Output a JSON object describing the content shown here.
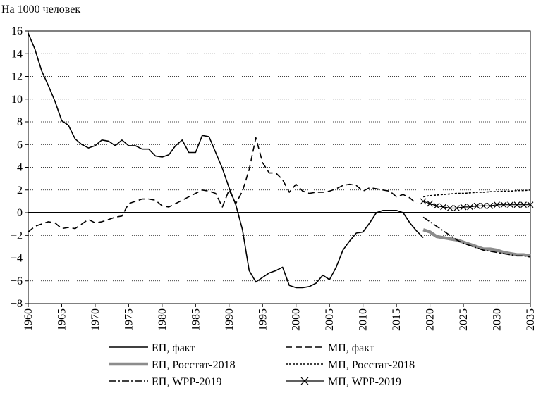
{
  "chart_data": {
    "type": "line",
    "y_label": "На 1000 человек",
    "xlim": [
      1960,
      2035
    ],
    "xticks": [
      1960,
      1965,
      1970,
      1975,
      1980,
      1985,
      1990,
      1995,
      2000,
      2005,
      2010,
      2015,
      2020,
      2025,
      2030,
      2035
    ],
    "ylim": [
      -8,
      16
    ],
    "yticks": [
      {
        "value": -8,
        "label": "−8"
      },
      {
        "value": -6,
        "label": "−6"
      },
      {
        "value": -4,
        "label": "−4"
      },
      {
        "value": -2,
        "label": "−2"
      },
      0,
      2,
      4,
      6,
      8,
      10,
      12,
      14,
      16
    ],
    "grid": true,
    "series": [
      {
        "name": "ЕП, факт",
        "color": "#000000",
        "dash": "none",
        "width": 1.6,
        "x": [
          1960,
          1961,
          1962,
          1963,
          1964,
          1965,
          1966,
          1967,
          1968,
          1969,
          1970,
          1971,
          1972,
          1973,
          1974,
          1975,
          1976,
          1977,
          1978,
          1979,
          1980,
          1981,
          1982,
          1983,
          1984,
          1985,
          1986,
          1987,
          1988,
          1989,
          1990,
          1991,
          1992,
          1993,
          1994,
          1995,
          1996,
          1997,
          1998,
          1999,
          2000,
          2001,
          2002,
          2003,
          2004,
          2005,
          2006,
          2007,
          2008,
          2009,
          2010,
          2011,
          2012,
          2013,
          2014,
          2015,
          2016,
          2017,
          2018,
          2019
        ],
        "values": [
          15.8,
          14.4,
          12.5,
          11.2,
          9.8,
          8.1,
          7.7,
          6.5,
          6.0,
          5.7,
          5.9,
          6.4,
          6.3,
          5.9,
          6.4,
          5.9,
          5.9,
          5.6,
          5.6,
          5.0,
          4.9,
          5.1,
          5.9,
          6.4,
          5.3,
          5.3,
          6.8,
          6.7,
          5.3,
          3.9,
          2.2,
          0.7,
          -1.5,
          -5.1,
          -6.1,
          -5.7,
          -5.3,
          -5.1,
          -4.8,
          -6.4,
          -6.6,
          -6.6,
          -6.5,
          -6.2,
          -5.5,
          -5.9,
          -4.8,
          -3.3,
          -2.5,
          -1.8,
          -1.7,
          -0.9,
          0.0,
          0.2,
          0.2,
          0.2,
          0.0,
          -0.9,
          -1.6,
          -2.2
        ]
      },
      {
        "name": "МП, факт",
        "color": "#000000",
        "dash": "9 5",
        "width": 1.6,
        "x": [
          1960,
          1961,
          1962,
          1963,
          1964,
          1965,
          1966,
          1967,
          1968,
          1969,
          1970,
          1971,
          1972,
          1973,
          1974,
          1975,
          1976,
          1977,
          1978,
          1979,
          1980,
          1981,
          1982,
          1983,
          1984,
          1985,
          1986,
          1987,
          1988,
          1989,
          1990,
          1991,
          1992,
          1993,
          1994,
          1995,
          1996,
          1997,
          1998,
          1999,
          2000,
          2001,
          2002,
          2003,
          2004,
          2005,
          2006,
          2007,
          2008,
          2009,
          2010,
          2011,
          2012,
          2013,
          2014,
          2015,
          2016,
          2017,
          2018
        ],
        "values": [
          -1.7,
          -1.2,
          -1.0,
          -0.8,
          -0.9,
          -1.4,
          -1.3,
          -1.4,
          -1.0,
          -0.6,
          -0.9,
          -0.8,
          -0.6,
          -0.4,
          -0.3,
          0.8,
          1.0,
          1.2,
          1.2,
          1.1,
          0.6,
          0.5,
          0.8,
          1.1,
          1.4,
          1.7,
          2.0,
          1.9,
          1.7,
          0.5,
          2.0,
          0.8,
          1.9,
          3.8,
          6.6,
          4.4,
          3.5,
          3.5,
          2.9,
          1.8,
          2.5,
          1.9,
          1.7,
          1.8,
          1.8,
          1.9,
          2.1,
          2.4,
          2.5,
          2.4,
          1.9,
          2.2,
          2.1,
          2.0,
          1.9,
          1.4,
          1.6,
          1.3,
          0.8
        ]
      },
      {
        "name": "ЕП, Росстат-2018",
        "color": "#8c8c8c",
        "dash": "none",
        "width": 4.5,
        "x": [
          2019,
          2020,
          2021,
          2022,
          2023,
          2024,
          2025,
          2026,
          2027,
          2028,
          2029,
          2030,
          2031,
          2032,
          2033,
          2034,
          2035
        ],
        "values": [
          -1.5,
          -1.7,
          -2.1,
          -2.2,
          -2.3,
          -2.4,
          -2.6,
          -2.8,
          -3.0,
          -3.2,
          -3.2,
          -3.3,
          -3.5,
          -3.6,
          -3.7,
          -3.7,
          -3.8
        ]
      },
      {
        "name": "МП, Росстат-2018",
        "color": "#000000",
        "dash": "3 2",
        "width": 1.6,
        "x": [
          2019,
          2020,
          2021,
          2022,
          2023,
          2024,
          2025,
          2026,
          2027,
          2028,
          2029,
          2030,
          2031,
          2032,
          2033,
          2034,
          2035
        ],
        "values": [
          1.4,
          1.5,
          1.55,
          1.6,
          1.65,
          1.7,
          1.7,
          1.75,
          1.8,
          1.8,
          1.85,
          1.85,
          1.9,
          1.9,
          1.95,
          1.95,
          2.0
        ]
      },
      {
        "name": "ЕП, WPP-2019",
        "color": "#000000",
        "dash": "10 3 2 3",
        "width": 1.6,
        "x": [
          2019,
          2020,
          2021,
          2022,
          2023,
          2024,
          2025,
          2026,
          2027,
          2028,
          2029,
          2030,
          2031,
          2032,
          2033,
          2034,
          2035
        ],
        "values": [
          -0.4,
          -0.8,
          -1.2,
          -1.6,
          -2.0,
          -2.4,
          -2.7,
          -2.9,
          -3.1,
          -3.3,
          -3.4,
          -3.5,
          -3.6,
          -3.7,
          -3.8,
          -3.8,
          -3.9
        ]
      },
      {
        "name": "МП, WPP-2019",
        "color": "#000000",
        "dash": "none",
        "width": 1.2,
        "marker": "x",
        "x": [
          2019,
          2020,
          2021,
          2022,
          2023,
          2024,
          2025,
          2026,
          2027,
          2028,
          2029,
          2030,
          2031,
          2032,
          2033,
          2034,
          2035
        ],
        "values": [
          1.0,
          0.8,
          0.6,
          0.5,
          0.4,
          0.4,
          0.5,
          0.5,
          0.6,
          0.6,
          0.6,
          0.7,
          0.7,
          0.7,
          0.7,
          0.7,
          0.7
        ]
      }
    ]
  }
}
